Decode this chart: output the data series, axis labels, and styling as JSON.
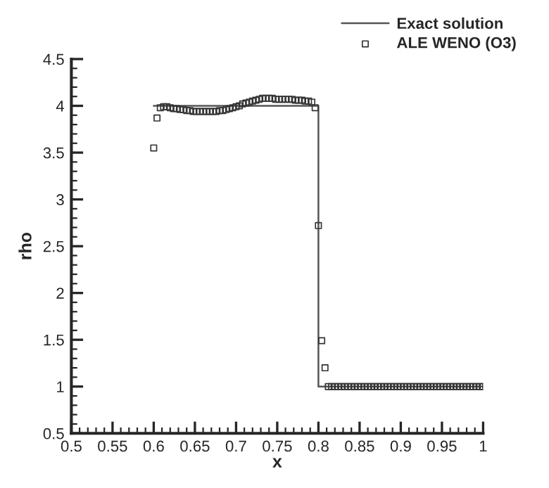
{
  "chart_data": {
    "type": "line",
    "xlabel": "x",
    "ylabel": "rho",
    "xlim": [
      0.5,
      1
    ],
    "xticks": [
      0.5,
      0.55,
      0.6,
      0.65,
      0.7,
      0.75,
      0.8,
      0.85,
      0.9,
      0.95,
      1
    ],
    "ylim": [
      0.5,
      4.5
    ],
    "yticks": [
      0.5,
      1,
      1.5,
      2,
      2.5,
      3,
      3.5,
      4,
      4.5
    ],
    "grid": false,
    "legend": "top right",
    "series": [
      {
        "name": "Exact solution",
        "color": "#555555",
        "line_style": "solid",
        "marker": "none",
        "x": [
          0.6,
          0.8,
          0.8,
          1.0
        ],
        "values": [
          4,
          4,
          1,
          1
        ]
      },
      {
        "name": "ALE WENO (O3)",
        "type": "scatter",
        "color": "#333333",
        "marker": "square",
        "x": [
          0.6,
          0.604,
          0.608,
          0.612,
          0.616,
          0.62,
          0.624,
          0.628,
          0.632,
          0.636,
          0.64,
          0.644,
          0.648,
          0.652,
          0.656,
          0.66,
          0.664,
          0.668,
          0.672,
          0.676,
          0.68,
          0.684,
          0.688,
          0.692,
          0.696,
          0.7,
          0.704,
          0.708,
          0.712,
          0.716,
          0.72,
          0.724,
          0.728,
          0.732,
          0.736,
          0.74,
          0.744,
          0.748,
          0.752,
          0.756,
          0.76,
          0.764,
          0.768,
          0.772,
          0.776,
          0.78,
          0.784,
          0.788,
          0.792,
          0.796,
          0.8,
          0.804,
          0.808,
          0.812,
          0.816,
          0.82,
          0.824,
          0.828,
          0.832,
          0.836,
          0.84,
          0.844,
          0.848,
          0.852,
          0.856,
          0.86,
          0.864,
          0.868,
          0.872,
          0.876,
          0.88,
          0.884,
          0.888,
          0.892,
          0.896,
          0.9,
          0.904,
          0.908,
          0.912,
          0.916,
          0.92,
          0.924,
          0.928,
          0.932,
          0.936,
          0.94,
          0.944,
          0.948,
          0.952,
          0.956,
          0.96,
          0.964,
          0.968,
          0.972,
          0.976,
          0.98,
          0.984,
          0.988,
          0.992,
          0.996,
          1.0
        ],
        "values": [
          3.55,
          3.87,
          3.98,
          3.99,
          3.99,
          3.98,
          3.97,
          3.97,
          3.96,
          3.96,
          3.95,
          3.95,
          3.94,
          3.94,
          3.94,
          3.94,
          3.94,
          3.94,
          3.94,
          3.94,
          3.95,
          3.95,
          3.96,
          3.97,
          3.98,
          3.99,
          4.0,
          4.02,
          4.03,
          4.04,
          4.05,
          4.06,
          4.07,
          4.08,
          4.08,
          4.08,
          4.08,
          4.07,
          4.07,
          4.07,
          4.07,
          4.07,
          4.07,
          4.06,
          4.06,
          4.06,
          4.05,
          4.05,
          4.04,
          3.98,
          2.72,
          1.49,
          1.2,
          1,
          1,
          1,
          1,
          1,
          1,
          1,
          1,
          1,
          1,
          1,
          1,
          1,
          1,
          1,
          1,
          1,
          1,
          1,
          1,
          1,
          1,
          1,
          1,
          1,
          1,
          1,
          1,
          1,
          1,
          1,
          1,
          1,
          1,
          1,
          1,
          1,
          1,
          1,
          1,
          1,
          1,
          1,
          1,
          1,
          1,
          1,
          1
        ]
      }
    ]
  }
}
